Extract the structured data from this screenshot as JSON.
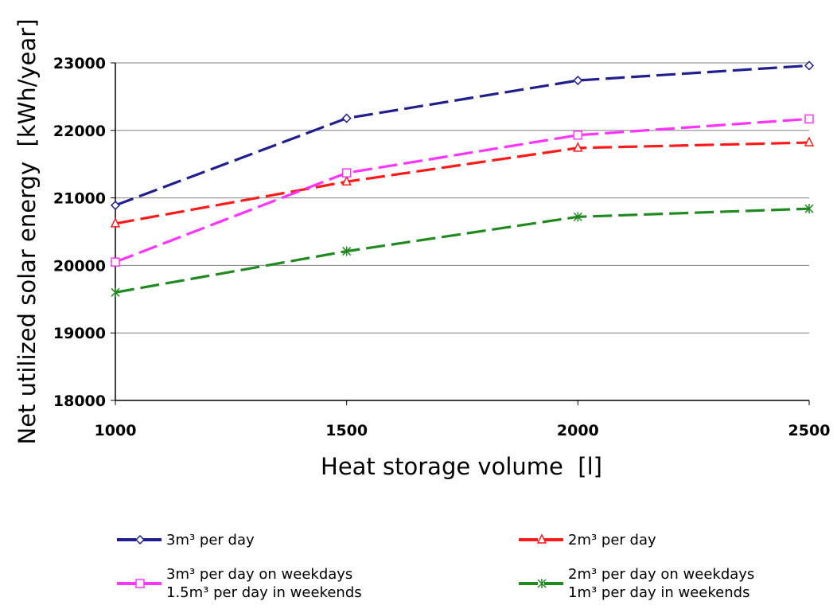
{
  "chart_data": {
    "type": "line",
    "x_label": "Heat storage volume  [l]",
    "y_label": "Net utilized solar energy  [kWh/year]",
    "x": [
      1000,
      1500,
      2000,
      2500
    ],
    "xlim": [
      1000,
      2500
    ],
    "xticks": [
      1000,
      1500,
      2000,
      2500
    ],
    "ylim": [
      18000,
      23000
    ],
    "yticks": [
      18000,
      19000,
      20000,
      21000,
      22000,
      23000
    ],
    "grid": true,
    "series": [
      {
        "name": "3m³ per day",
        "color": "#1f1f8f",
        "marker": "diamond",
        "values": [
          20890,
          22180,
          22740,
          22960
        ]
      },
      {
        "name": "2m³ per day",
        "color": "#ff1a1a",
        "marker": "triangle",
        "values": [
          20620,
          21240,
          21740,
          21820
        ]
      },
      {
        "name": "3m³ per day on weekdays\n1.5m³ per day in weekends",
        "color": "#ff33ff",
        "marker": "square",
        "values": [
          20050,
          21370,
          21930,
          22170
        ]
      },
      {
        "name": "2m³ per day on weekdays\n1m³ per day in weekends",
        "color": "#1f8a1f",
        "marker": "asterisk",
        "values": [
          19600,
          20210,
          20720,
          20840
        ]
      }
    ]
  }
}
